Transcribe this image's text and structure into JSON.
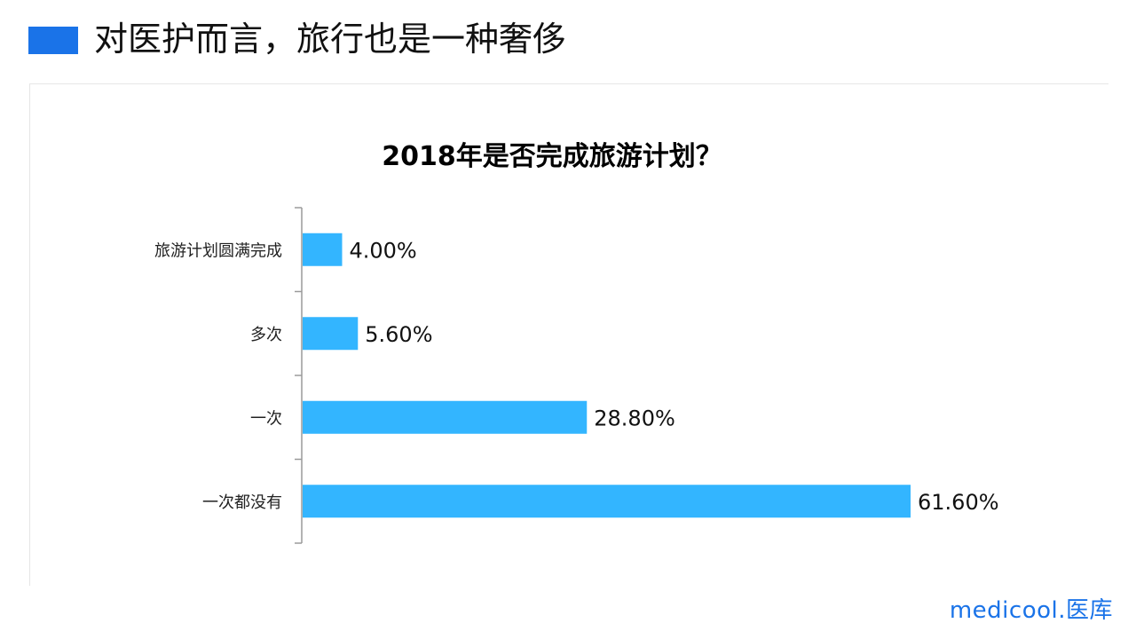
{
  "slide": {
    "title": "对医护而言，旅行也是一种奢侈",
    "accent_color": "#1a73e8"
  },
  "logo": {
    "text": "medicool.医库"
  },
  "chart_data": {
    "type": "bar",
    "orientation": "horizontal",
    "title": "2018年是否完成旅游计划？",
    "categories": [
      "旅游计划圆满完成",
      "多次",
      "一次",
      "一次都没有"
    ],
    "values": [
      4.0,
      5.6,
      28.8,
      61.6
    ],
    "value_labels": [
      "4.00%",
      "5.60%",
      "28.80%",
      "61.60%"
    ],
    "unit": "%",
    "xlim": [
      0,
      70
    ],
    "bar_color": "#33b5ff",
    "grid": false,
    "legend": "none"
  }
}
